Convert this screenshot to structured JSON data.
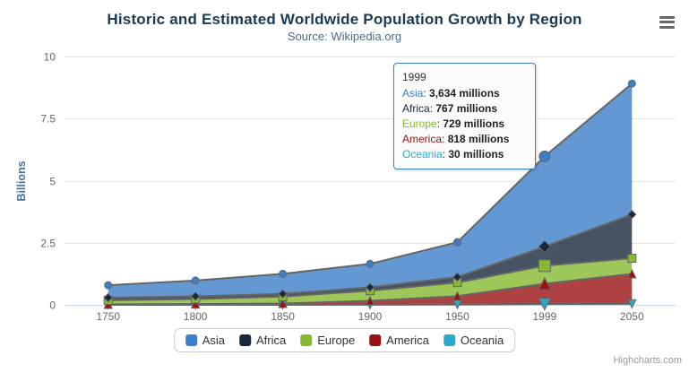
{
  "header": {
    "title": "Historic and Estimated Worldwide Population Growth by Region",
    "subtitle": "Source: Wikipedia.org"
  },
  "context_menu": {
    "icon": "hamburger-menu-icon"
  },
  "theme": {
    "title_color": "#1c3a54",
    "subtitle_color": "#4e6a85",
    "axis_label_color": "#666666",
    "y_axis_title_color": "#4971a3",
    "grid_color": "#e6e6e6",
    "axis_line_color": "#ccd6eb",
    "series_line_color": "#666666",
    "legend_border_color": "#cccccc",
    "tooltip_border_color": "#3c7ec8",
    "credits_color": "#999999"
  },
  "chart_data": {
    "type": "area",
    "stacking": "normal",
    "title": "Historic and Estimated Worldwide Population Growth by Region",
    "subtitle": "Source: Wikipedia.org",
    "categories": [
      "1750",
      "1800",
      "1850",
      "1900",
      "1950",
      "1999",
      "2050"
    ],
    "xlabel": "",
    "ylabel": "Billions",
    "ylim": [
      0,
      10
    ],
    "y_ticks": [
      0,
      2.5,
      5,
      7.5,
      10
    ],
    "y_tick_labels": [
      "0",
      "2.5",
      "5",
      "7.5",
      "10"
    ],
    "values_unit": "millions",
    "grid": "horizontal-only",
    "legend_position": "bottom",
    "hovered_category": "1999",
    "hovered_index": 5,
    "fill_opacity": 0.8,
    "series": [
      {
        "name": "Asia",
        "color": "#3c7ec8",
        "marker": "circle",
        "values": [
          502,
          635,
          809,
          947,
          1402,
          3634,
          5268
        ]
      },
      {
        "name": "Africa",
        "color": "#16283c",
        "marker": "diamond",
        "values": [
          106,
          107,
          111,
          133,
          221,
          767,
          1766
        ]
      },
      {
        "name": "Europe",
        "color": "#86b92f",
        "marker": "square",
        "values": [
          163,
          203,
          276,
          408,
          547,
          729,
          628
        ]
      },
      {
        "name": "America",
        "color": "#9a1111",
        "marker": "triangle",
        "values": [
          18,
          31,
          54,
          156,
          339,
          818,
          1201
        ]
      },
      {
        "name": "Oceania",
        "color": "#29a8c8",
        "marker": "triangle-down",
        "values": [
          2,
          2,
          2,
          6,
          13,
          30,
          46
        ]
      }
    ]
  },
  "tooltip": {
    "header": "1999",
    "rows": [
      {
        "name": "Asia",
        "value": "3,634 millions"
      },
      {
        "name": "Africa",
        "value": "767 millions"
      },
      {
        "name": "Europe",
        "value": "729 millions"
      },
      {
        "name": "America",
        "value": "818 millions"
      },
      {
        "name": "Oceania",
        "value": "30 millions"
      }
    ]
  },
  "credits": {
    "text": "Highcharts.com"
  }
}
